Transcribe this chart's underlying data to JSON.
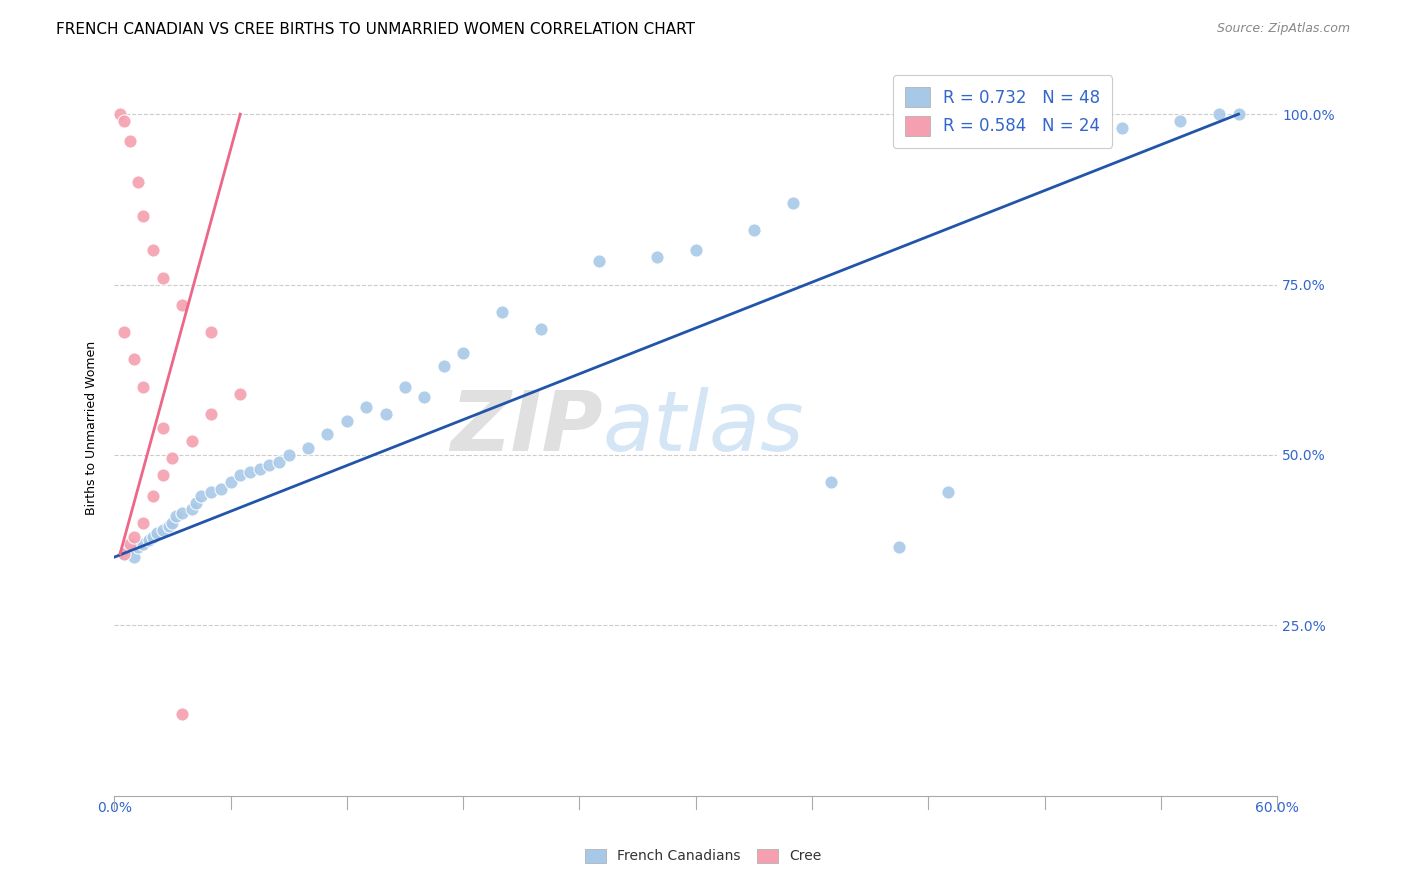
{
  "title": "FRENCH CANADIAN VS CREE BIRTHS TO UNMARRIED WOMEN CORRELATION CHART",
  "source": "Source: ZipAtlas.com",
  "ylabel": "Births to Unmarried Women",
  "xmin": 0.0,
  "xmax": 60.0,
  "ymin": 0.0,
  "ymax": 108.0,
  "yticks": [
    25.0,
    50.0,
    75.0,
    100.0
  ],
  "watermark_zip": "ZIP",
  "watermark_atlas": "atlas",
  "blue_color": "#A8C8E8",
  "pink_color": "#F4A0B0",
  "blue_line_color": "#2255AA",
  "pink_line_color": "#EE6688",
  "legend_label_blue": "French Canadians",
  "legend_label_pink": "Cree",
  "legend_blue_text": "R = 0.732   N = 48",
  "legend_pink_text": "R = 0.584   N = 24",
  "title_fontsize": 11,
  "axis_label_fontsize": 9,
  "tick_fontsize": 10,
  "source_fontsize": 9,
  "french_canadians_x": [
    0.5,
    0.7,
    1.0,
    1.2,
    1.5,
    1.8,
    2.0,
    2.2,
    2.5,
    2.8,
    3.0,
    3.2,
    3.5,
    4.0,
    4.2,
    4.5,
    5.0,
    5.5,
    6.0,
    6.5,
    7.0,
    7.5,
    8.0,
    8.5,
    9.0,
    10.0,
    11.0,
    12.0,
    13.0,
    14.0,
    15.0,
    16.0,
    17.0,
    18.0,
    20.0,
    22.0,
    25.0,
    28.0,
    30.0,
    33.0,
    35.0,
    37.0,
    40.5,
    43.0,
    52.0,
    55.0,
    57.0,
    58.0
  ],
  "french_canadians_y": [
    35.5,
    36.0,
    35.0,
    36.5,
    37.0,
    37.5,
    38.0,
    38.5,
    39.0,
    39.5,
    40.0,
    41.0,
    41.5,
    42.0,
    43.0,
    44.0,
    44.5,
    45.0,
    46.0,
    47.0,
    47.5,
    48.0,
    48.5,
    49.0,
    50.0,
    51.0,
    53.0,
    55.0,
    57.0,
    56.0,
    60.0,
    58.5,
    63.0,
    65.0,
    71.0,
    68.5,
    78.5,
    79.0,
    80.0,
    83.0,
    87.0,
    46.0,
    36.5,
    44.5,
    98.0,
    99.0,
    100.0,
    100.0
  ],
  "cree_x": [
    0.5,
    0.8,
    1.0,
    1.5,
    2.0,
    2.5,
    3.0,
    4.0,
    5.0,
    6.5,
    0.3,
    0.5,
    0.8,
    1.2,
    1.5,
    2.0,
    2.5,
    3.5,
    5.0,
    0.5,
    1.0,
    1.5,
    2.5,
    3.5
  ],
  "cree_y": [
    35.5,
    37.0,
    38.0,
    40.0,
    44.0,
    47.0,
    49.5,
    52.0,
    56.0,
    59.0,
    100.0,
    99.0,
    96.0,
    90.0,
    85.0,
    80.0,
    76.0,
    72.0,
    68.0,
    68.0,
    64.0,
    60.0,
    54.0,
    12.0
  ],
  "blue_line_x0": 0.0,
  "blue_line_y0": 35.0,
  "blue_line_x1": 58.0,
  "blue_line_y1": 100.0,
  "pink_line_x0": 0.3,
  "pink_line_y0": 35.5,
  "pink_line_x1": 6.5,
  "pink_line_y1": 100.0
}
